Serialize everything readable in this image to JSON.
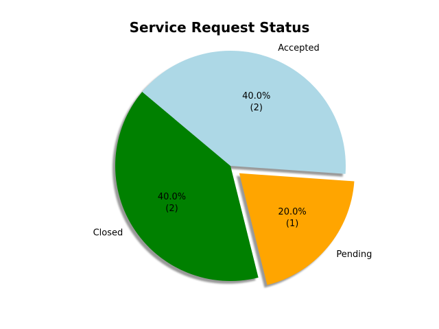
{
  "chart_data": {
    "type": "pie",
    "title": "Service Request Status",
    "slices": [
      {
        "label": "Closed",
        "value": 2,
        "percent_text": "40.0%",
        "count_text": "(2)",
        "color": "#008000",
        "explode": false
      },
      {
        "label": "Pending",
        "value": 1,
        "percent_text": "20.0%",
        "count_text": "(1)",
        "color": "#FFA500",
        "explode": true
      },
      {
        "label": "Accepted",
        "value": 2,
        "percent_text": "40.0%",
        "count_text": "(2)",
        "color": "#ADD8E6",
        "explode": false
      }
    ],
    "start_angle_deg": 140,
    "shadow": true
  }
}
